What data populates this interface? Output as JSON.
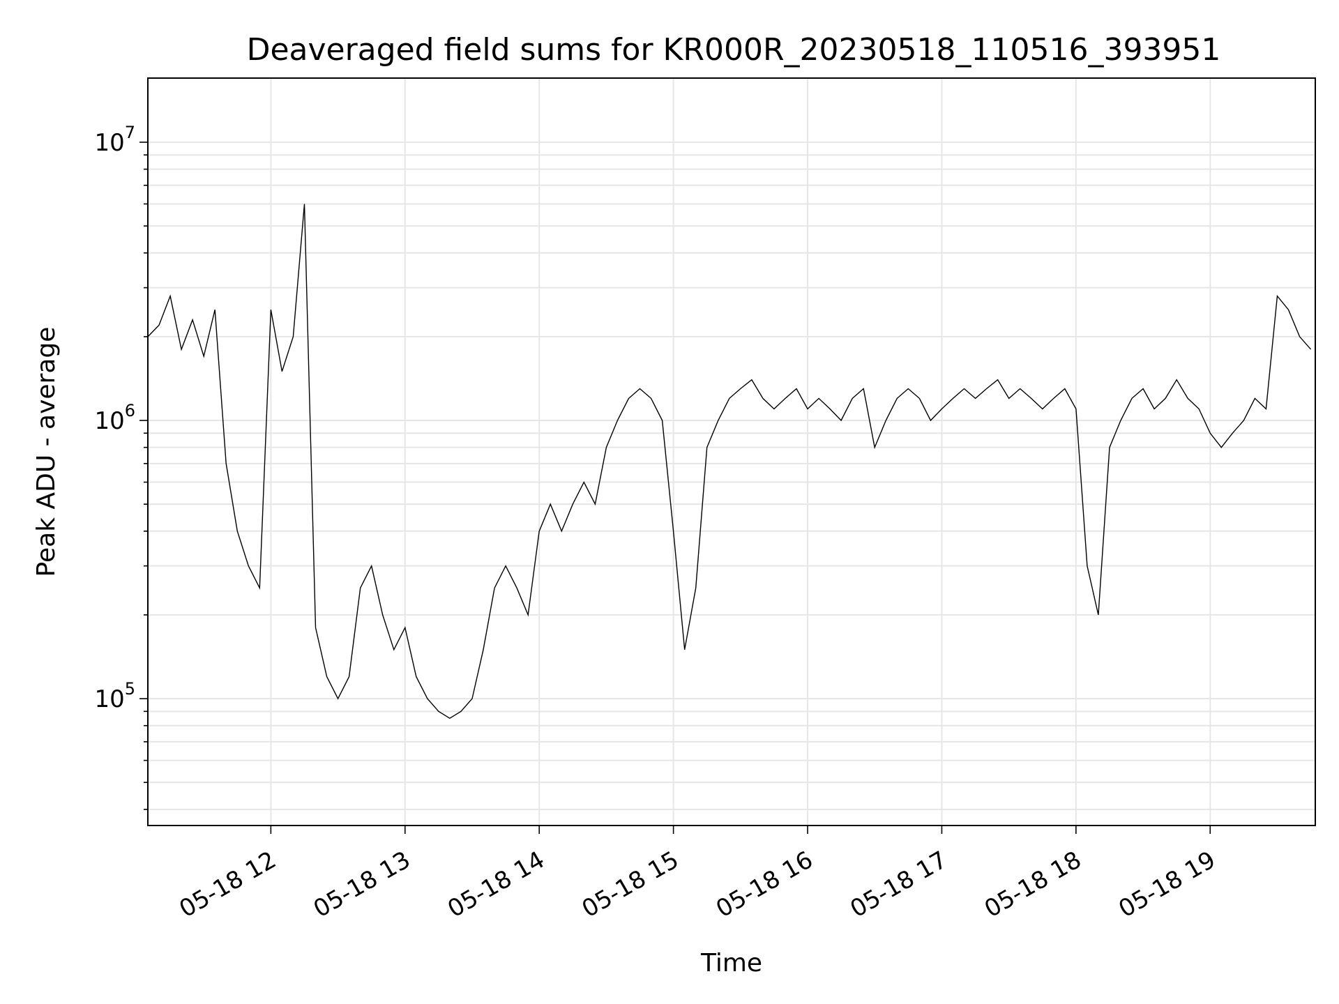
{
  "chart_data": {
    "type": "line",
    "title": "Deaveraged field sums for KR000R_20230518_110516_393951",
    "xlabel": "Time",
    "ylabel": "Peak ADU - average",
    "x_range": [
      "2023-05-18 11:05",
      "2023-05-18 19:47"
    ],
    "y_scale": "log",
    "y_range": [
      35000,
      17000000
    ],
    "grid": true,
    "x_ticks": [
      "05-18 12",
      "05-18 13",
      "05-18 14",
      "05-18 15",
      "05-18 16",
      "05-18 17",
      "05-18 18",
      "05-18 19"
    ],
    "y_ticks": [
      {
        "base": "10",
        "exp": "5",
        "value": 100000
      },
      {
        "base": "10",
        "exp": "6",
        "value": 1000000
      },
      {
        "base": "10",
        "exp": "7",
        "value": 10000000
      }
    ],
    "line_color": "#000000",
    "series": [
      {
        "x": [
          "11:05",
          "11:10",
          "11:15",
          "11:20",
          "11:25",
          "11:30",
          "11:35",
          "11:40",
          "11:45",
          "11:50",
          "11:55",
          "12:00",
          "12:05",
          "12:10",
          "12:15",
          "12:20",
          "12:25",
          "12:30",
          "12:35",
          "12:40",
          "12:45",
          "12:50",
          "12:55",
          "13:00",
          "13:05",
          "13:10",
          "13:15",
          "13:20",
          "13:25",
          "13:30",
          "13:35",
          "13:40",
          "13:45",
          "13:50",
          "13:55",
          "14:00",
          "14:05",
          "14:10",
          "14:15",
          "14:20",
          "14:25",
          "14:30",
          "14:35",
          "14:40",
          "14:45",
          "14:50",
          "14:55",
          "15:00",
          "15:05",
          "15:10",
          "15:15",
          "15:20",
          "15:25",
          "15:30",
          "15:35",
          "15:40",
          "15:45",
          "15:50",
          "15:55",
          "16:00",
          "16:05",
          "16:10",
          "16:15",
          "16:20",
          "16:25",
          "16:30",
          "16:35",
          "16:40",
          "16:45",
          "16:50",
          "16:55",
          "17:00",
          "17:05",
          "17:10",
          "17:15",
          "17:20",
          "17:25",
          "17:30",
          "17:35",
          "17:40",
          "17:45",
          "17:50",
          "17:55",
          "18:00",
          "18:05",
          "18:10",
          "18:15",
          "18:20",
          "18:25",
          "18:30",
          "18:35",
          "18:40",
          "18:45",
          "18:50",
          "18:55",
          "19:00",
          "19:05",
          "19:10",
          "19:15",
          "19:20",
          "19:25",
          "19:30",
          "19:35",
          "19:40",
          "19:45"
        ],
        "y": [
          2000000,
          2200000,
          2800000,
          1800000,
          2300000,
          1700000,
          2500000,
          700000,
          400000,
          300000,
          250000,
          2500000,
          1500000,
          2000000,
          6000000,
          180000,
          120000,
          100000,
          120000,
          250000,
          300000,
          200000,
          150000,
          180000,
          120000,
          100000,
          90000,
          85000,
          90000,
          100000,
          150000,
          250000,
          300000,
          250000,
          200000,
          400000,
          500000,
          400000,
          500000,
          600000,
          500000,
          800000,
          1000000,
          1200000,
          1300000,
          1200000,
          1000000,
          400000,
          150000,
          250000,
          800000,
          1000000,
          1200000,
          1300000,
          1400000,
          1200000,
          1100000,
          1200000,
          1300000,
          1100000,
          1200000,
          1100000,
          1000000,
          1200000,
          1300000,
          800000,
          1000000,
          1200000,
          1300000,
          1200000,
          1000000,
          1100000,
          1200000,
          1300000,
          1200000,
          1300000,
          1400000,
          1200000,
          1300000,
          1200000,
          1100000,
          1200000,
          1300000,
          1100000,
          300000,
          200000,
          800000,
          1000000,
          1200000,
          1300000,
          1100000,
          1200000,
          1400000,
          1200000,
          1100000,
          900000,
          800000,
          900000,
          1000000,
          1200000,
          1100000,
          2800000,
          2500000,
          2000000,
          1800000
        ]
      }
    ]
  }
}
